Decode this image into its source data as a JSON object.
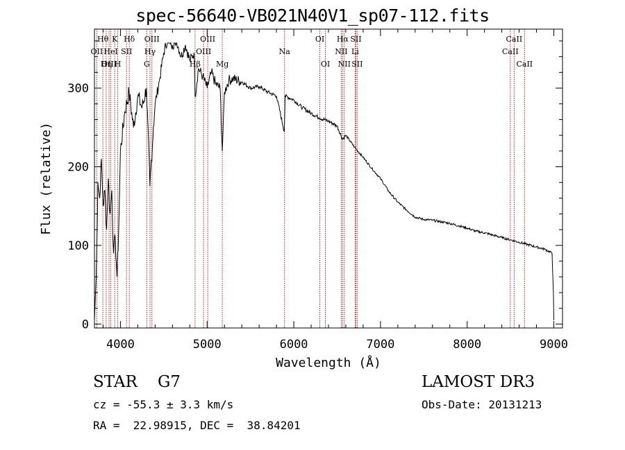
{
  "title": "spec-56640-VB021N40V1_sp07-112.fits",
  "chart_data": {
    "type": "line",
    "title": "spec-56640-VB021N40V1_sp07-112.fits",
    "xlabel": "Wavelength (Å)",
    "ylabel": "Flux (relative)",
    "xlim": [
      3700,
      9100
    ],
    "ylim": [
      -5,
      375
    ],
    "xticks": [
      4000,
      5000,
      6000,
      7000,
      8000,
      9000
    ],
    "yticks": [
      0,
      100,
      200,
      300
    ],
    "series": [
      {
        "name": "flux",
        "x": [
          3700,
          3720,
          3740,
          3760,
          3780,
          3800,
          3820,
          3840,
          3860,
          3880,
          3900,
          3920,
          3940,
          3960,
          3980,
          4000,
          4050,
          4100,
          4150,
          4200,
          4250,
          4300,
          4340,
          4380,
          4400,
          4450,
          4500,
          4550,
          4600,
          4650,
          4700,
          4750,
          4800,
          4850,
          4861,
          4900,
          4950,
          5000,
          5050,
          5100,
          5150,
          5175,
          5200,
          5250,
          5300,
          5400,
          5500,
          5600,
          5700,
          5800,
          5890,
          5900,
          6000,
          6100,
          6200,
          6300,
          6400,
          6500,
          6563,
          6600,
          6700,
          6800,
          6900,
          7000,
          7100,
          7200,
          7300,
          7400,
          7500,
          7600,
          7700,
          7800,
          7900,
          8000,
          8100,
          8200,
          8300,
          8400,
          8500,
          8600,
          8700,
          8800,
          8900,
          8980,
          8995,
          9000
        ],
        "y": [
          5,
          60,
          180,
          160,
          210,
          150,
          170,
          120,
          185,
          140,
          170,
          90,
          110,
          60,
          120,
          220,
          270,
          295,
          250,
          290,
          275,
          300,
          175,
          250,
          280,
          310,
          345,
          365,
          355,
          360,
          340,
          355,
          335,
          345,
          290,
          325,
          315,
          300,
          320,
          305,
          300,
          220,
          295,
          310,
          312,
          308,
          300,
          302,
          295,
          290,
          245,
          290,
          285,
          275,
          268,
          262,
          258,
          252,
          235,
          240,
          225,
          212,
          198,
          185,
          168,
          155,
          145,
          136,
          133,
          132,
          130,
          128,
          125,
          122,
          118,
          116,
          113,
          110,
          107,
          104,
          101,
          98,
          95,
          90,
          40,
          5
        ]
      }
    ],
    "lines": [
      {
        "name": "Hθ",
        "wave": 3797,
        "row": 1
      },
      {
        "name": "OII",
        "wave": 3727,
        "row": 2
      },
      {
        "name": "OIII",
        "wave": 3869,
        "row": 3
      },
      {
        "name": "HeI",
        "wave": 3889,
        "row": 2
      },
      {
        "name": "Hη",
        "wave": 3835,
        "row": 3
      },
      {
        "name": "K",
        "wave": 3934,
        "row": 1
      },
      {
        "name": "H",
        "wave": 3969,
        "row": 3
      },
      {
        "name": "SII",
        "wave": 4070,
        "row": 2
      },
      {
        "name": "Hδ",
        "wave": 4102,
        "row": 1
      },
      {
        "name": "G",
        "wave": 4304,
        "row": 3
      },
      {
        "name": "OIII",
        "wave": 4363,
        "row": 1
      },
      {
        "name": "Hγ",
        "wave": 4341,
        "row": 2
      },
      {
        "name": "Hβ",
        "wave": 4861,
        "row": 3
      },
      {
        "name": "OIII",
        "wave": 4959,
        "row": 2
      },
      {
        "name": "OIII",
        "wave": 5007,
        "row": 1
      },
      {
        "name": "Mg",
        "wave": 5175,
        "row": 3
      },
      {
        "name": "Na",
        "wave": 5893,
        "row": 2
      },
      {
        "name": "OI",
        "wave": 6300,
        "row": 1
      },
      {
        "name": "OI",
        "wave": 6364,
        "row": 3
      },
      {
        "name": "Hα",
        "wave": 6563,
        "row": 1
      },
      {
        "name": "NII",
        "wave": 6548,
        "row": 2
      },
      {
        "name": "NII",
        "wave": 6583,
        "row": 3
      },
      {
        "name": "SII",
        "wave": 6716,
        "row": 1
      },
      {
        "name": "Li",
        "wave": 6708,
        "row": 2
      },
      {
        "name": "SII",
        "wave": 6731,
        "row": 3
      },
      {
        "name": "CaII",
        "wave": 8542,
        "row": 1
      },
      {
        "name": "CaII",
        "wave": 8498,
        "row": 2
      },
      {
        "name": "CaII",
        "wave": 8662,
        "row": 3
      }
    ]
  },
  "info": {
    "star_label": "STAR    G7",
    "survey": "LAMOST DR3",
    "cz": "cz = -55.3 ± 3.3 km/s",
    "obs_date": "Obs-Date: 20131213",
    "radec": "RA =  22.98915, DEC =  38.84201"
  },
  "colors": {
    "line_marker": "#b22222",
    "spectrum": "#000000"
  }
}
